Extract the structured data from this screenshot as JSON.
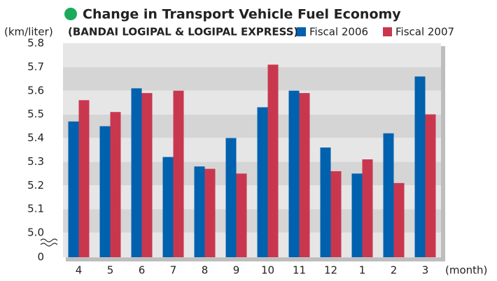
{
  "chart_data": {
    "type": "bar",
    "title": "Change in Transport Vehicle Fuel Economy",
    "subtitle": "(BANDAI LOGIPAL & LOGIPAL EXPRESS)",
    "y_label": "(km/liter)",
    "x_label": "(month)",
    "categories": [
      "4",
      "5",
      "6",
      "7",
      "8",
      "9",
      "10",
      "11",
      "12",
      "1",
      "2",
      "3"
    ],
    "series": [
      {
        "name": "Fiscal 2006",
        "color": "#0061ae",
        "values": [
          5.47,
          5.45,
          5.61,
          5.32,
          5.28,
          5.4,
          5.53,
          5.6,
          5.36,
          5.25,
          5.42,
          5.66
        ]
      },
      {
        "name": "Fiscal 2007",
        "color": "#c9374f",
        "values": [
          5.56,
          5.51,
          5.59,
          5.6,
          5.27,
          5.25,
          5.71,
          5.59,
          5.26,
          5.31,
          5.21,
          5.5
        ]
      }
    ],
    "ylim": [
      0,
      5.8
    ],
    "y_break": [
      0,
      5.0
    ],
    "yticks": [
      0,
      {
        "value": 5.0,
        "label": "5.0"
      },
      5.1,
      5.2,
      5.3,
      5.4,
      5.5,
      5.6,
      5.7,
      5.8
    ],
    "legend": "top-right",
    "title_marker_color": "#1aaa5a"
  }
}
